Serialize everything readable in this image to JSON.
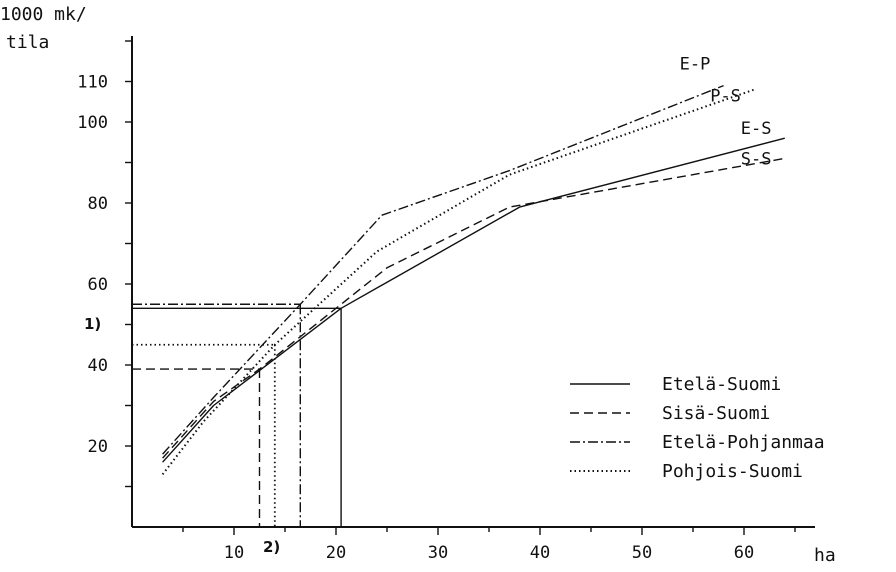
{
  "chart_data": {
    "type": "line",
    "ylabel_lines": [
      "1000 mk/",
      "tila"
    ],
    "xlabel": "ha",
    "xlim": [
      0,
      65
    ],
    "ylim": [
      0,
      125
    ],
    "x_ticks": [
      10,
      20,
      30,
      40,
      50,
      60
    ],
    "y_ticks": [
      20,
      40,
      60,
      80,
      100,
      110
    ],
    "notes": [
      "1)",
      "2)"
    ],
    "series": [
      {
        "name": "Etelä-Suomi",
        "end_label": "E-S",
        "dash": "solid",
        "points": [
          [
            3,
            16
          ],
          [
            8,
            30
          ],
          [
            20.5,
            54
          ],
          [
            38,
            79
          ],
          [
            64,
            96
          ]
        ]
      },
      {
        "name": "Sisä-Suomi",
        "end_label": "S-S",
        "dash": "dashed",
        "points": [
          [
            3,
            17
          ],
          [
            8,
            31
          ],
          [
            12.5,
            39
          ],
          [
            25,
            64
          ],
          [
            37,
            79
          ],
          [
            64,
            91
          ]
        ]
      },
      {
        "name": "Etelä-Pohjanmaa",
        "end_label": "E-P",
        "dash": "dashdot",
        "points": [
          [
            3,
            18
          ],
          [
            8,
            32
          ],
          [
            16.5,
            55
          ],
          [
            24.5,
            77
          ],
          [
            37,
            88
          ],
          [
            58,
            109
          ]
        ]
      },
      {
        "name": "Pohjois-Suomi",
        "end_label": "P-S",
        "dash": "dotted",
        "points": [
          [
            3,
            13
          ],
          [
            7,
            26
          ],
          [
            14,
            45
          ],
          [
            24,
            68
          ],
          [
            37,
            87
          ],
          [
            61,
            108
          ]
        ]
      }
    ],
    "reference_lines": [
      {
        "series": "Etelä-Suomi",
        "x": 20.5,
        "y": 54
      },
      {
        "series": "Sisä-Suomi",
        "x": 12.5,
        "y": 39
      },
      {
        "series": "Etelä-Pohjanmaa",
        "x": 16.5,
        "y": 55
      },
      {
        "series": "Pohjois-Suomi",
        "x": 14,
        "y": 45
      }
    ]
  }
}
